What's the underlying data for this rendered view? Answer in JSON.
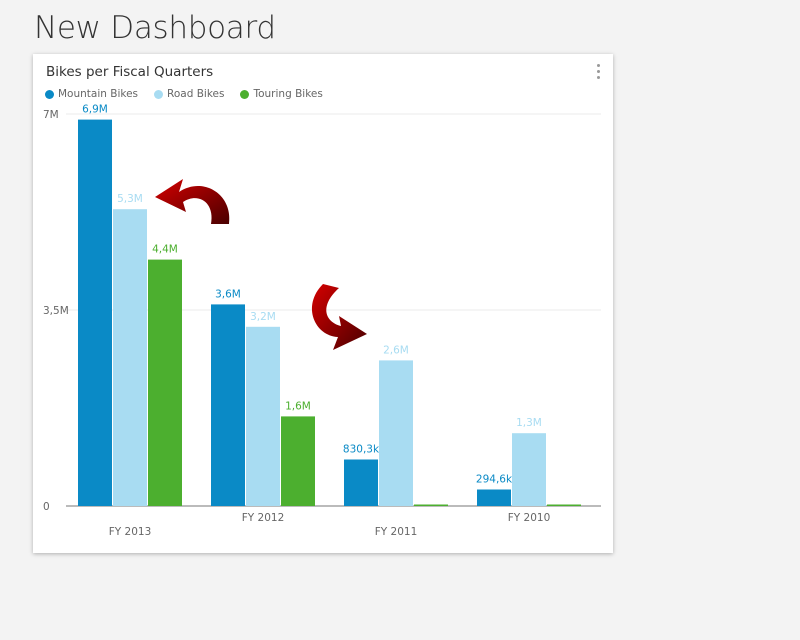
{
  "page": {
    "title": "New Dashboard"
  },
  "tile": {
    "menu_icon": "more-vertical-icon"
  },
  "annotations": [
    {
      "name": "curved-arrow-left-icon",
      "color": "#8b0000"
    },
    {
      "name": "curved-arrow-down-right-icon",
      "color": "#8b0000"
    }
  ],
  "chart_data": {
    "type": "bar",
    "title": "Bikes per Fiscal Quarters",
    "categories": [
      "FY 2013",
      "FY 2012",
      "FY 2011",
      "FY 2010"
    ],
    "series": [
      {
        "name": "Mountain Bikes",
        "color": "#0a8ac6",
        "values": [
          6900000,
          3600000,
          830300,
          294600
        ],
        "labels": [
          "6,9M",
          "3,6M",
          "830,3k",
          "294,6k"
        ]
      },
      {
        "name": "Road Bikes",
        "color": "#a8dcf2",
        "values": [
          5300000,
          3200000,
          2600000,
          1300000
        ],
        "labels": [
          "5,3M",
          "3,2M",
          "2,6M",
          "1,3M"
        ]
      },
      {
        "name": "Touring Bikes",
        "color": "#4caf2f",
        "values": [
          4400000,
          1600000,
          0,
          0
        ],
        "labels": [
          "4,4M",
          "1,6M",
          "",
          ""
        ]
      }
    ],
    "ylim": [
      0,
      7000000
    ],
    "yticks": [
      {
        "value": 0,
        "label": "0"
      },
      {
        "value": 3500000,
        "label": "3,5M"
      },
      {
        "value": 7000000,
        "label": "7M"
      }
    ],
    "grid": true,
    "legend_position": "top-left",
    "xlabel": "",
    "ylabel": ""
  }
}
